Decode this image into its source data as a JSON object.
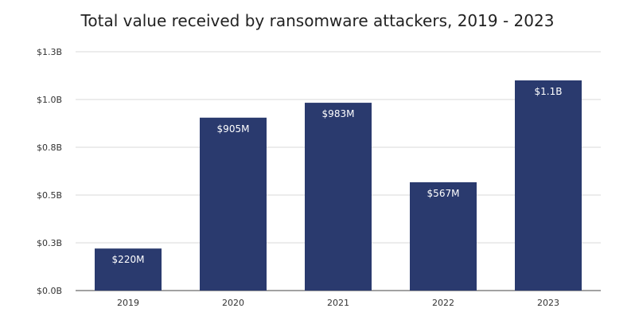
{
  "chart_data": {
    "type": "bar",
    "title": "Total value received by ransomware attackers, 2019 - 2023",
    "xlabel": "",
    "ylabel": "",
    "categories": [
      "2019",
      "2020",
      "2021",
      "2022",
      "2023"
    ],
    "values": [
      220,
      905,
      983,
      567,
      1100
    ],
    "units": "millions USD",
    "data_labels": [
      "$220M",
      "$905M",
      "$983M",
      "$567M",
      "$1.1B"
    ],
    "ylim": [
      0,
      1250
    ],
    "yticks": [
      0,
      250,
      500,
      750,
      1000,
      1250
    ],
    "ytick_labels": [
      "$0.0B",
      "$0.3B",
      "$0.5B",
      "$0.8B",
      "$1.0B",
      "$1.3B"
    ],
    "grid": true,
    "legend": "none",
    "bar_color": "#2a3a6e"
  }
}
